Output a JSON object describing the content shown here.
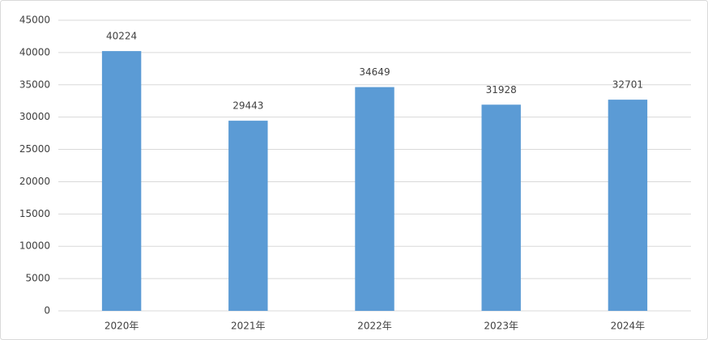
{
  "chart_data": {
    "type": "bar",
    "categories": [
      "2020年",
      "2021年",
      "2022年",
      "2023年",
      "2024年"
    ],
    "values": [
      40224,
      29443,
      34649,
      31928,
      32701
    ],
    "color": "#5b9bd5",
    "ylim": [
      0,
      45000
    ],
    "yticks": [
      0,
      5000,
      10000,
      15000,
      20000,
      25000,
      30000,
      35000,
      40000,
      45000
    ],
    "grid": true,
    "data_labels": true
  }
}
